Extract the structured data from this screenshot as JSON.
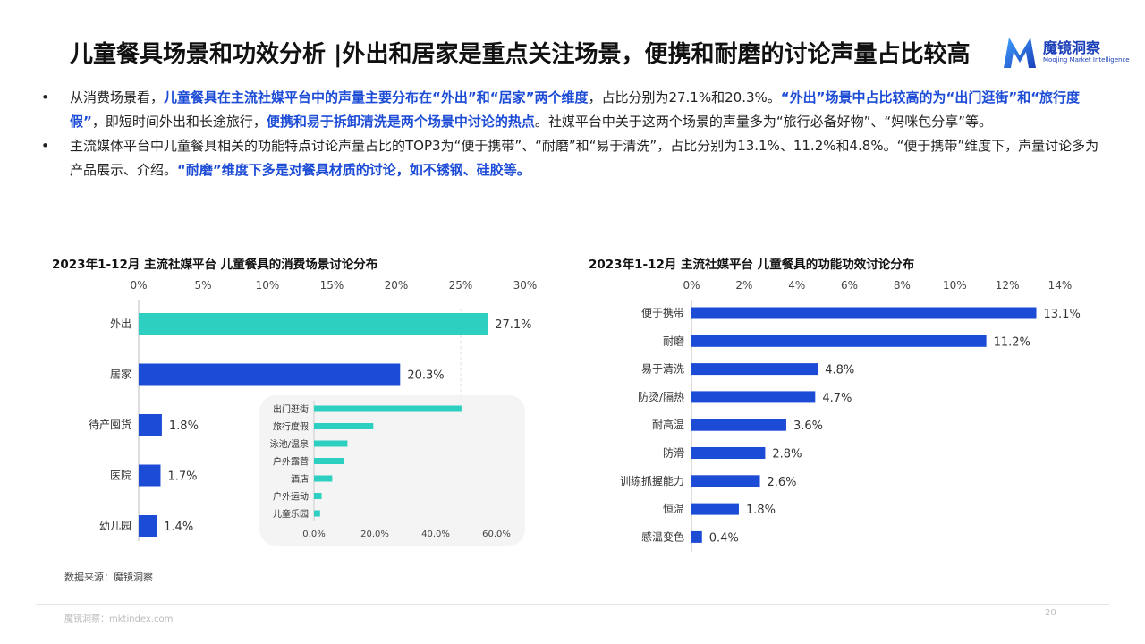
{
  "title": "儿童餐具场景和功效分析 |外出和居家是重点关注场景，便携和耐磨的讨论声量占比较高",
  "logo": {
    "name_cn": "魔镜洞察",
    "name_en": "Moojing Market Intelligence",
    "color": "#1b3fb8"
  },
  "bullets": [
    {
      "dot": "•",
      "segments": [
        {
          "text": "从消费场景看，",
          "hl": false
        },
        {
          "text": "儿童餐具在主流社媒平台中的声量主要分布在“外出”和“居家”两个维度",
          "hl": true
        },
        {
          "text": "，占比分别为27.1%和20.3%。",
          "hl": false
        },
        {
          "text": "“外出”场景中占比较高的为“出门逛街”和“旅行度假”",
          "hl": true
        },
        {
          "text": "，即短时间外出和长途旅行，",
          "hl": false
        },
        {
          "text": "便携和易于拆卸清洗是两个场景中讨论的热点",
          "hl": true
        },
        {
          "text": "。社媒平台中关于这两个场景的声量多为“旅行必备好物”、“妈咪包分享”等。",
          "hl": false
        }
      ]
    },
    {
      "dot": "•",
      "segments": [
        {
          "text": "主流媒体平台中儿童餐具相关的功能特点讨论声量占比的TOP3为“便于携带”、“耐磨”和“易于清洗”，占比分别为13.1%、11.2%和4.8%。“便于携带”维度下，声量讨论多为产品展示、介绍。",
          "hl": false
        },
        {
          "text": "“耐磨”维度下多是对餐具材质的讨论，如不锈钢、硅胶等。",
          "hl": true
        }
      ]
    }
  ],
  "chart_data": [
    {
      "type": "bar",
      "orientation": "horizontal",
      "title": "2023年1-12月 主流社媒平台 儿童餐具的消费场景讨论分布",
      "categories": [
        "外出",
        "居家",
        "待产囤货",
        "医院",
        "幼儿园"
      ],
      "values": [
        27.1,
        20.3,
        1.8,
        1.7,
        1.4
      ],
      "value_labels": [
        "27.1%",
        "20.3%",
        "1.8%",
        "1.7%",
        "1.4%"
      ],
      "colors": [
        "#2ccfc0",
        "#1c4bd6",
        "#1c4bd6",
        "#1c4bd6",
        "#1c4bd6"
      ],
      "xlim": [
        0,
        30
      ],
      "ticks": [
        "0%",
        "5%",
        "10%",
        "15%",
        "20%",
        "25%",
        "30%"
      ],
      "tick_values": [
        0,
        5,
        10,
        15,
        20,
        25,
        30
      ],
      "axis_position": "top",
      "inset": {
        "type": "bar",
        "orientation": "horizontal",
        "categories": [
          "出门逛街",
          "旅行度假",
          "泳池/温泉",
          "户外露营",
          "酒店",
          "户外运动",
          "儿童乐园"
        ],
        "values": [
          48.5,
          19.5,
          11.0,
          10.0,
          6.0,
          2.5,
          2.0
        ],
        "xlim": [
          0,
          60
        ],
        "ticks": [
          "0.0%",
          "20.0%",
          "40.0%",
          "60.0%"
        ],
        "tick_values": [
          0,
          20,
          40,
          60
        ],
        "color": "#2ccfc0",
        "background": "#f4f4f4"
      }
    },
    {
      "type": "bar",
      "orientation": "horizontal",
      "title": "2023年1-12月 主流社媒平台 儿童餐具的功能功效讨论分布",
      "categories": [
        "便于携带",
        "耐磨",
        "易于清洗",
        "防烫/隔热",
        "耐高温",
        "防滑",
        "训练抓握能力",
        "恒温",
        "感温变色"
      ],
      "values": [
        13.1,
        11.2,
        4.8,
        4.7,
        3.6,
        2.8,
        2.6,
        1.8,
        0.4
      ],
      "value_labels": [
        "13.1%",
        "11.2%",
        "4.8%",
        "4.7%",
        "3.6%",
        "2.8%",
        "2.6%",
        "1.8%",
        "0.4%"
      ],
      "color": "#1c4bd6",
      "xlim": [
        0,
        14
      ],
      "ticks": [
        "0%",
        "2%",
        "4%",
        "6%",
        "8%",
        "10%",
        "12%",
        "14%"
      ],
      "tick_values": [
        0,
        2,
        4,
        6,
        8,
        10,
        12,
        14
      ],
      "axis_position": "top"
    }
  ],
  "source": "数据来源：魔镜洞察",
  "footer": "魔镜洞察：mktindex.com",
  "page_number": "20"
}
